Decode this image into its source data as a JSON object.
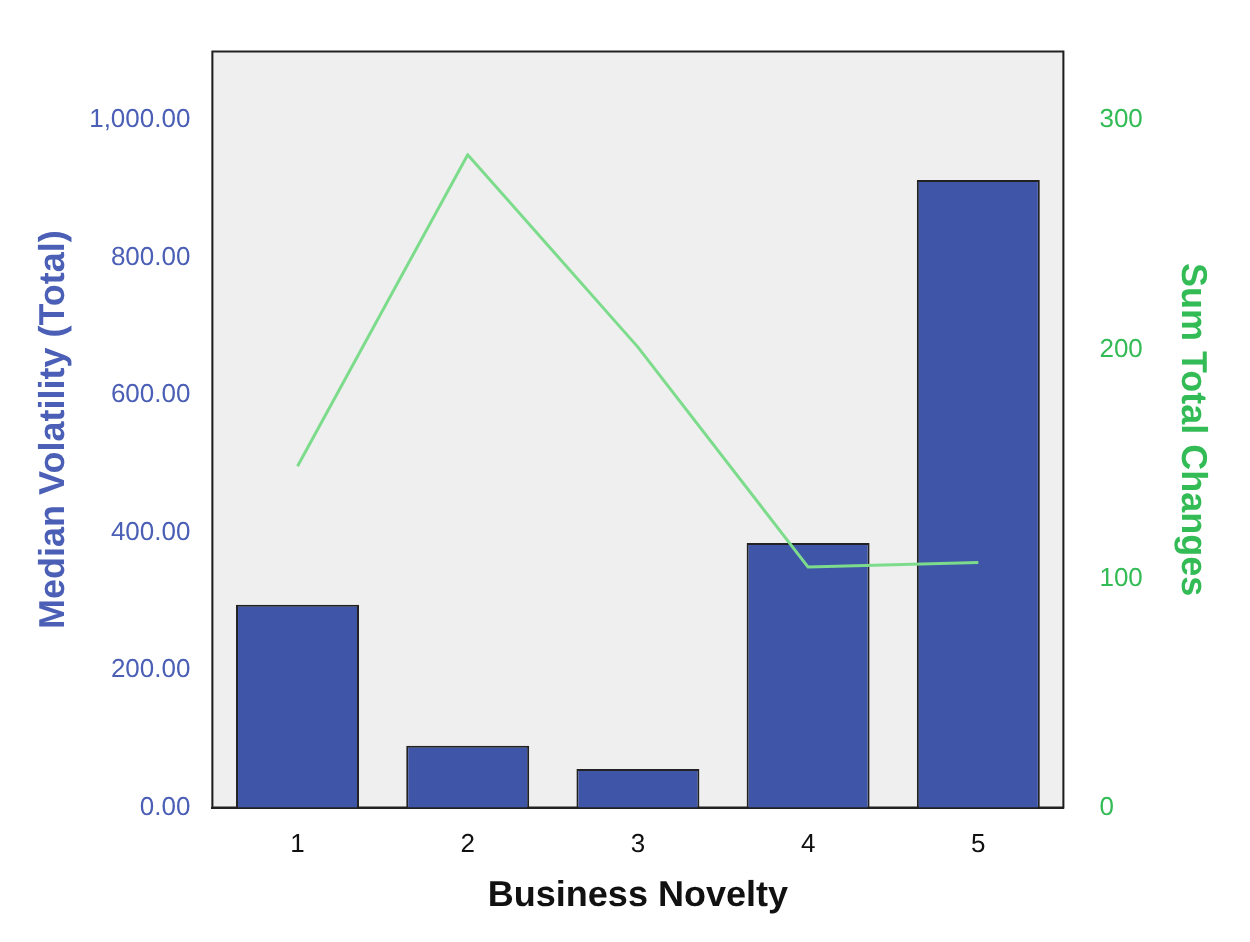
{
  "chart_data": {
    "type": "bar",
    "xlabel": "Business Novelty",
    "ylabel": "Median Volatility (Total)",
    "y2label": "Sum Total Changes",
    "categories": [
      "1",
      "2",
      "3",
      "4",
      "5"
    ],
    "series": [
      {
        "color": "#3f55a8",
        "values": [
          295,
          90,
          56,
          385,
          913
        ]
      },
      {
        "type": "line",
        "axis": "y2",
        "color": "#7ddc8c",
        "values": [
          149,
          285,
          201,
          105,
          107
        ]
      }
    ],
    "ylim": [
      0,
      1100
    ],
    "yticks": [
      {
        "value": 0,
        "label": "0.00"
      },
      {
        "value": 200,
        "label": "200.00"
      },
      {
        "value": 400,
        "label": "400.00"
      },
      {
        "value": 600,
        "label": "600.00"
      },
      {
        "value": 800,
        "label": "800.00"
      },
      {
        "value": 1000,
        "label": "1,000.00"
      }
    ],
    "y2lim": [
      0,
      330
    ],
    "y2ticks": [
      0,
      100,
      200,
      300
    ],
    "grid": false,
    "legend": false,
    "marker": "none"
  }
}
